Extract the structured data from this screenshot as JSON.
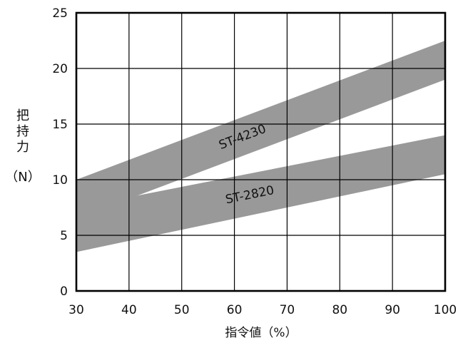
{
  "chart_data": {
    "type": "area",
    "xlabel": "指令値（%）",
    "ylabel": "把持力（N）",
    "xlim": [
      30,
      100
    ],
    "ylim": [
      0,
      25
    ],
    "x_ticks": [
      "30",
      "40",
      "50",
      "60",
      "70",
      "80",
      "90",
      "100"
    ],
    "y_ticks": [
      "0",
      "5",
      "10",
      "15",
      "20",
      "25"
    ],
    "grid": true,
    "band_color": "#999999",
    "series": [
      {
        "name": "ST-4230",
        "x": [
          30,
          100
        ],
        "lower": [
          6.5,
          19.0
        ],
        "upper": [
          10.0,
          22.5
        ]
      },
      {
        "name": "ST-2820",
        "x": [
          30,
          100
        ],
        "lower": [
          3.5,
          10.5
        ],
        "upper": [
          7.5,
          14.0
        ]
      }
    ]
  }
}
